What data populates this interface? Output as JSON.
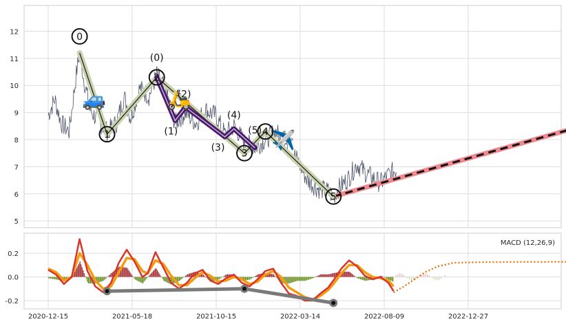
{
  "chart_data": {
    "type": "line",
    "title": "",
    "x_ticks": [
      "2020-12-15",
      "2021-05-18",
      "2021-10-15",
      "2022-03-14",
      "2022-08-09",
      "2022-12-27"
    ],
    "price_panel": {
      "ylim": [
        4.75,
        12.95
      ],
      "y_ticks": [
        5,
        6,
        7,
        8,
        9,
        10,
        11,
        12
      ],
      "grid": true,
      "price_anchors": [
        [
          0,
          8.9
        ],
        [
          5,
          9.5
        ],
        [
          10,
          8.6
        ],
        [
          16,
          8.3
        ],
        [
          22,
          10.6
        ],
        [
          24,
          11.2
        ],
        [
          27,
          10.3
        ],
        [
          32,
          9.1
        ],
        [
          38,
          8.7
        ],
        [
          45,
          8.3
        ],
        [
          52,
          8.6
        ],
        [
          58,
          9.6
        ],
        [
          63,
          8.8
        ],
        [
          70,
          9.9
        ],
        [
          77,
          9.6
        ],
        [
          83,
          10.4
        ],
        [
          90,
          9.8
        ],
        [
          97,
          8.6
        ],
        [
          105,
          9.0
        ],
        [
          113,
          8.6
        ],
        [
          120,
          9.1
        ],
        [
          128,
          8.9
        ],
        [
          135,
          8.2
        ],
        [
          142,
          8.5
        ],
        [
          150,
          7.9
        ],
        [
          158,
          7.7
        ],
        [
          166,
          8.0
        ],
        [
          174,
          8.3
        ],
        [
          182,
          7.8
        ],
        [
          190,
          7.3
        ],
        [
          198,
          6.5
        ],
        [
          206,
          6.2
        ],
        [
          214,
          6.1
        ],
        [
          218,
          5.9
        ],
        [
          222,
          6.2
        ],
        [
          230,
          6.6
        ],
        [
          236,
          7.1
        ],
        [
          242,
          6.8
        ],
        [
          248,
          6.6
        ],
        [
          254,
          6.4
        ],
        [
          260,
          6.7
        ],
        [
          266,
          6.9
        ]
      ],
      "forecast_line": {
        "start": [
          218,
          5.9
        ],
        "end": [
          430,
          8.8
        ]
      },
      "wave_main": {
        "points": [
          [
            24,
            11.2
          ],
          [
            45,
            8.2
          ],
          [
            83,
            10.3
          ],
          [
            150,
            7.5
          ],
          [
            166,
            8.3
          ],
          [
            218,
            5.9
          ]
        ],
        "labels": [
          "0",
          "1",
          "2",
          "3",
          "4",
          "5"
        ]
      },
      "wave_sub": {
        "points": [
          [
            83,
            10.3
          ],
          [
            97,
            8.7
          ],
          [
            105,
            9.2
          ],
          [
            135,
            8.1
          ],
          [
            142,
            8.4
          ],
          [
            158,
            7.7
          ]
        ],
        "labels": [
          "(0)",
          "(1)",
          "(2)",
          "(3)",
          "(4)",
          "(5)"
        ]
      },
      "emoji_markers": [
        {
          "symbol": "🚙",
          "at": [
            35,
            9.5
          ]
        },
        {
          "symbol": "🛵",
          "at": [
            100,
            9.5
          ]
        },
        {
          "symbol": "✈️",
          "at": [
            180,
            8.0
          ]
        }
      ]
    },
    "macd_panel": {
      "label": "MACD (12,26,9)",
      "ylim": [
        -0.27,
        0.37
      ],
      "y_ticks": [
        -0.2,
        0.0,
        0.2
      ],
      "grid": true,
      "macd_anchors": [
        [
          0,
          0.06
        ],
        [
          6,
          0.02
        ],
        [
          12,
          -0.06
        ],
        [
          18,
          0.0
        ],
        [
          24,
          0.32
        ],
        [
          30,
          0.05
        ],
        [
          36,
          -0.08
        ],
        [
          42,
          -0.13
        ],
        [
          48,
          -0.05
        ],
        [
          54,
          0.12
        ],
        [
          60,
          0.23
        ],
        [
          66,
          0.13
        ],
        [
          72,
          0.0
        ],
        [
          76,
          0.03
        ],
        [
          82,
          0.21
        ],
        [
          88,
          0.08
        ],
        [
          94,
          -0.05
        ],
        [
          100,
          -0.1
        ],
        [
          106,
          -0.05
        ],
        [
          112,
          0.03
        ],
        [
          118,
          0.06
        ],
        [
          124,
          -0.03
        ],
        [
          130,
          -0.06
        ],
        [
          136,
          -0.01
        ],
        [
          142,
          0.02
        ],
        [
          148,
          -0.05
        ],
        [
          154,
          -0.08
        ],
        [
          160,
          -0.02
        ],
        [
          166,
          0.05
        ],
        [
          172,
          0.07
        ],
        [
          178,
          -0.05
        ],
        [
          184,
          -0.14
        ],
        [
          190,
          -0.16
        ],
        [
          196,
          -0.2
        ],
        [
          202,
          -0.2
        ],
        [
          208,
          -0.14
        ],
        [
          214,
          -0.09
        ],
        [
          218,
          -0.03
        ],
        [
          224,
          0.07
        ],
        [
          230,
          0.14
        ],
        [
          236,
          0.09
        ],
        [
          242,
          0.01
        ],
        [
          248,
          -0.02
        ],
        [
          254,
          0.0
        ],
        [
          260,
          -0.05
        ],
        [
          264,
          -0.12
        ]
      ],
      "signal_anchors": [
        [
          0,
          0.07
        ],
        [
          6,
          0.04
        ],
        [
          12,
          -0.03
        ],
        [
          18,
          0.0
        ],
        [
          24,
          0.2
        ],
        [
          30,
          0.1
        ],
        [
          36,
          -0.03
        ],
        [
          42,
          -0.1
        ],
        [
          48,
          -0.08
        ],
        [
          54,
          0.04
        ],
        [
          60,
          0.16
        ],
        [
          66,
          0.15
        ],
        [
          72,
          0.05
        ],
        [
          76,
          0.03
        ],
        [
          82,
          0.14
        ],
        [
          88,
          0.11
        ],
        [
          94,
          0.01
        ],
        [
          100,
          -0.07
        ],
        [
          106,
          -0.07
        ],
        [
          112,
          -0.01
        ],
        [
          118,
          0.04
        ],
        [
          124,
          0.01
        ],
        [
          130,
          -0.04
        ],
        [
          136,
          -0.03
        ],
        [
          142,
          0.0
        ],
        [
          148,
          -0.02
        ],
        [
          154,
          -0.06
        ],
        [
          160,
          -0.04
        ],
        [
          166,
          0.02
        ],
        [
          172,
          0.05
        ],
        [
          178,
          0.0
        ],
        [
          184,
          -0.09
        ],
        [
          190,
          -0.13
        ],
        [
          196,
          -0.17
        ],
        [
          202,
          -0.19
        ],
        [
          208,
          -0.16
        ],
        [
          214,
          -0.11
        ],
        [
          218,
          -0.06
        ],
        [
          224,
          0.03
        ],
        [
          230,
          0.1
        ],
        [
          236,
          0.1
        ],
        [
          242,
          0.04
        ],
        [
          248,
          0.0
        ],
        [
          254,
          -0.01
        ],
        [
          260,
          -0.03
        ],
        [
          264,
          -0.08
        ]
      ],
      "forecast_dotted": [
        [
          264,
          -0.13
        ],
        [
          272,
          -0.08
        ],
        [
          280,
          -0.02
        ],
        [
          288,
          0.04
        ],
        [
          298,
          0.09
        ],
        [
          310,
          0.12
        ],
        [
          330,
          0.125
        ],
        [
          360,
          0.127
        ],
        [
          400,
          0.128
        ],
        [
          430,
          0.128
        ]
      ],
      "wave_markers": [
        [
          45,
          -0.12
        ],
        [
          150,
          -0.1
        ],
        [
          218,
          -0.22
        ]
      ]
    }
  }
}
